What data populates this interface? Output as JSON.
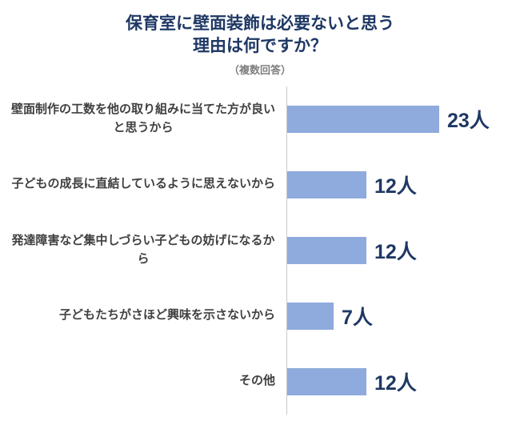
{
  "title": {
    "line1": "保育室に壁面装飾は必要ないと思う",
    "line2": "理由は何ですか？",
    "subtitle": "（複数回答）"
  },
  "chart_data": {
    "type": "bar",
    "orientation": "horizontal",
    "title": "保育室に壁面装飾は必要ないと思う理由は何ですか？（複数回答）",
    "categories": [
      "壁面制作の工数を他の取り組みに当てた方が良いと思うから",
      "子どもの成長に直結しているように思えないから",
      "発達障害など集中しづらい子どもの妨げになるから",
      "子どもたちがさほど興味を示さないから",
      "その他"
    ],
    "values": [
      23,
      12,
      12,
      7,
      12
    ],
    "value_suffix": "人",
    "value_labels": [
      "23人",
      "12人",
      "12人",
      "7人",
      "12人"
    ],
    "xlim": [
      0,
      25
    ],
    "grid": false,
    "legend": "none"
  },
  "colors": {
    "bar": "#8FAADC",
    "navy": "#1F3864",
    "category_text": "#404040",
    "subtitle_gray": "#7F7F7F",
    "axis_line": "#C9C9C9"
  }
}
